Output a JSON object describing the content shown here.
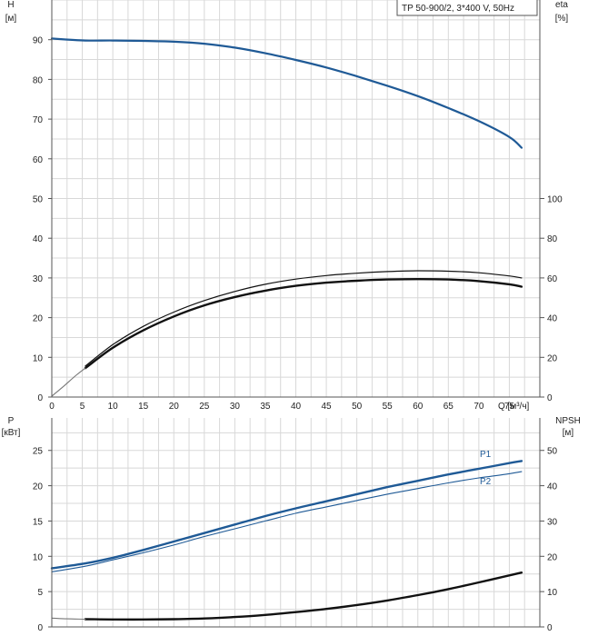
{
  "colors": {
    "grid": "#d8d8d8",
    "axis": "#555555",
    "blue": "#1f5a96",
    "black": "#111111",
    "grey": "#777777",
    "legend_border": "#555555"
  },
  "chart_data": [
    {
      "type": "line",
      "legend": "TP 50-900/2, 3*400 V, 50Hz",
      "x_axis": {
        "label": "Q [м³/ч]",
        "ticks": [
          "0",
          "5",
          "10",
          "15",
          "20",
          "25",
          "30",
          "35",
          "40",
          "45",
          "50",
          "55",
          "60",
          "65",
          "70",
          "75"
        ],
        "range": [
          0,
          80
        ]
      },
      "y_left": {
        "label_line1": "H",
        "label_line2": "[м]",
        "ticks": [
          "0",
          "10",
          "20",
          "30",
          "40",
          "50",
          "60",
          "70",
          "80",
          "90"
        ],
        "range": [
          0,
          100
        ]
      },
      "y_right": {
        "label_line1": "eta",
        "label_line2": "[%]",
        "ticks": [
          "0",
          "20",
          "40",
          "60",
          "80",
          "100"
        ],
        "range": [
          0,
          200
        ]
      },
      "grid": true,
      "series": [
        {
          "axis": "left",
          "style": "blue",
          "x": [
            0,
            5.5,
            10,
            15,
            20,
            25,
            30,
            35,
            40,
            45,
            50,
            55,
            60,
            65,
            70,
            75,
            77
          ],
          "y": [
            90.3,
            89.8,
            89.8,
            89.7,
            89.5,
            89.0,
            88.0,
            86.6,
            84.9,
            83.0,
            80.8,
            78.4,
            75.8,
            72.8,
            69.5,
            65.5,
            62.8
          ]
        },
        {
          "axis": "left",
          "style": "black-thin",
          "x": [
            5.5,
            10,
            15,
            20,
            25,
            30,
            35,
            40,
            45,
            50,
            55,
            60,
            65,
            70,
            75,
            77
          ],
          "y": [
            7.8,
            13.2,
            17.8,
            21.4,
            24.3,
            26.6,
            28.4,
            29.7,
            30.6,
            31.2,
            31.6,
            31.8,
            31.7,
            31.3,
            30.5,
            30.0
          ]
        },
        {
          "axis": "left",
          "style": "black-thick",
          "x": [
            5.5,
            10,
            15,
            20,
            25,
            30,
            35,
            40,
            45,
            50,
            55,
            60,
            65,
            70,
            75,
            77
          ],
          "y": [
            7.3,
            12.4,
            16.8,
            20.3,
            23.1,
            25.2,
            26.8,
            28.0,
            28.8,
            29.3,
            29.6,
            29.7,
            29.6,
            29.2,
            28.4,
            27.8
          ]
        },
        {
          "axis": "left",
          "style": "grey",
          "x": [
            0,
            2,
            4,
            5.5
          ],
          "y": [
            0.2,
            2.8,
            5.5,
            7.3
          ]
        }
      ]
    },
    {
      "type": "line",
      "x_axis": {
        "range": [
          0,
          80
        ]
      },
      "y_left": {
        "label_line1": "P",
        "label_line2": "[кВт]",
        "ticks": [
          "0",
          "5",
          "10",
          "15",
          "20",
          "25"
        ],
        "range": [
          0,
          29.6
        ]
      },
      "y_right": {
        "label_line1": "NPSH",
        "label_line2": "[м]",
        "ticks": [
          "0",
          "10",
          "20",
          "30",
          "40",
          "50"
        ],
        "range": [
          0,
          59.2
        ]
      },
      "grid": true,
      "series": [
        {
          "name": "P1",
          "axis": "left",
          "style": "blue-thick",
          "x": [
            0,
            5.5,
            10,
            15,
            20,
            25,
            30,
            35,
            40,
            45,
            50,
            55,
            60,
            65,
            70,
            75,
            77
          ],
          "y": [
            8.3,
            9.0,
            9.8,
            10.9,
            12.1,
            13.3,
            14.5,
            15.7,
            16.8,
            17.8,
            18.8,
            19.8,
            20.7,
            21.6,
            22.4,
            23.2,
            23.5
          ]
        },
        {
          "name": "P2",
          "axis": "left",
          "style": "blue-thin",
          "x": [
            0,
            5.5,
            10,
            15,
            20,
            25,
            30,
            35,
            40,
            45,
            50,
            55,
            60,
            65,
            70,
            75,
            77
          ],
          "y": [
            7.8,
            8.6,
            9.5,
            10.5,
            11.6,
            12.8,
            13.9,
            15.0,
            16.1,
            17.0,
            17.9,
            18.8,
            19.6,
            20.4,
            21.1,
            21.7,
            22.0
          ]
        },
        {
          "axis": "right",
          "style": "black-thick",
          "x": [
            5.5,
            10,
            15,
            20,
            25,
            30,
            35,
            40,
            45,
            50,
            55,
            60,
            65,
            70,
            75,
            77
          ],
          "y": [
            2.2,
            2.1,
            2.1,
            2.2,
            2.4,
            2.8,
            3.4,
            4.2,
            5.1,
            6.2,
            7.5,
            9.0,
            10.7,
            12.6,
            14.6,
            15.4
          ]
        },
        {
          "axis": "right",
          "style": "grey",
          "x": [
            0,
            2.5,
            5.5
          ],
          "y": [
            2.5,
            2.3,
            2.2
          ]
        }
      ]
    }
  ]
}
